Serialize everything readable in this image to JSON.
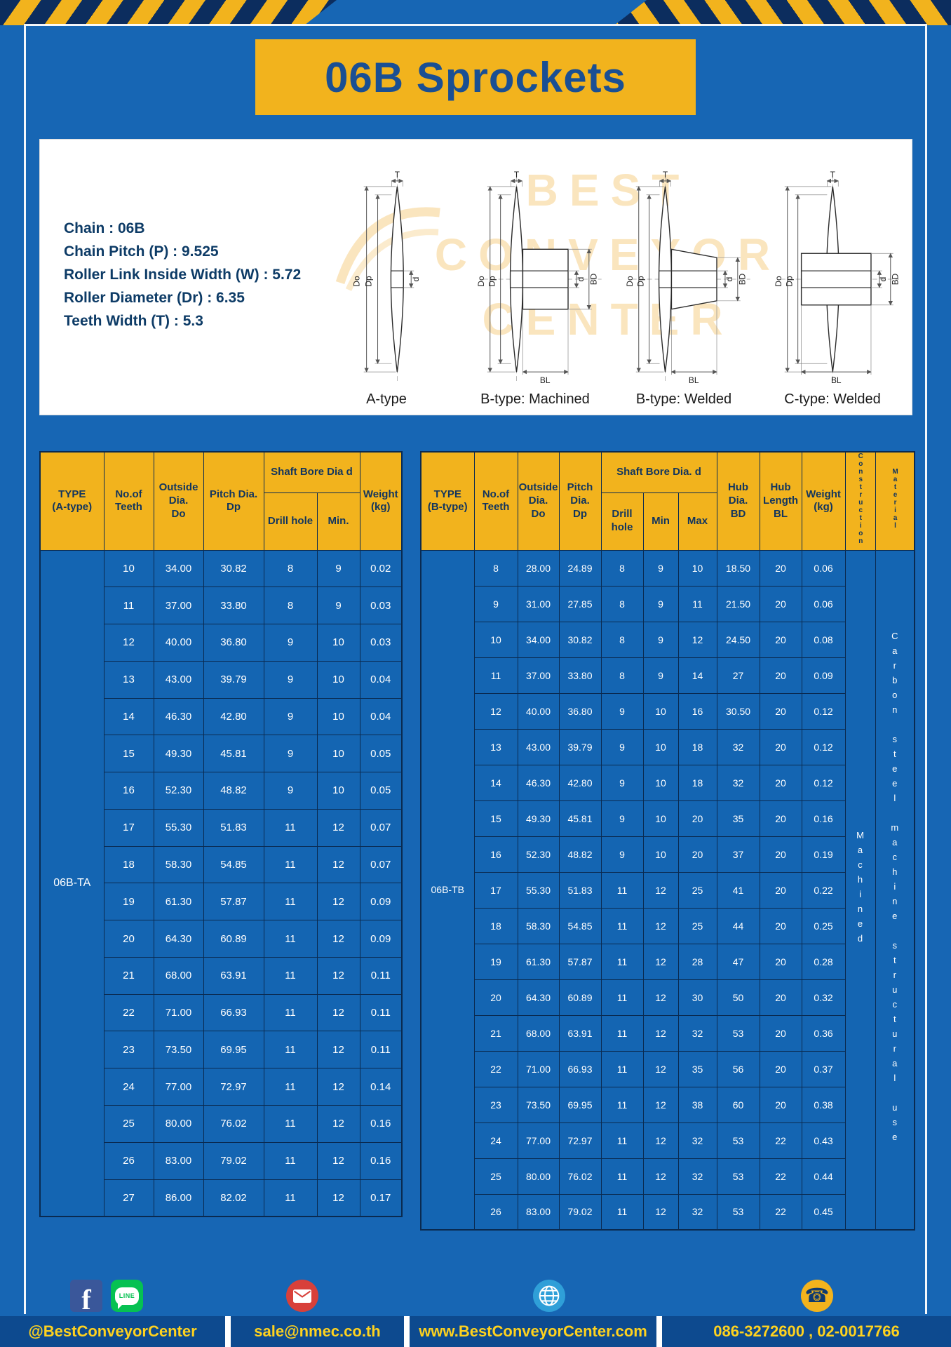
{
  "title": "06B Sprockets",
  "specs": [
    "Chain  :  06B",
    "Chain Pitch (P)  :  9.525",
    "Roller Link Inside Width (W)  :  5.72",
    "Roller Diameter (Dr)  :  6.35",
    "Teeth Width (T)  :  5.3"
  ],
  "watermark": [
    "BEST",
    "CONVEYOR",
    "CENTER"
  ],
  "diagrams": {
    "captions": [
      "A-type",
      "B-type: Machined",
      "B-type: Welded",
      "C-type: Welded"
    ],
    "dims": {
      "t": "T",
      "dO": "Do",
      "dp": "Dp",
      "d": "d",
      "bd": "BD",
      "bl": "BL"
    }
  },
  "table_a": {
    "headers": {
      "type": "TYPE\n(A-type)",
      "teeth": "No.of\nTeeth",
      "outside": "Outside\nDia.\nDo",
      "pitch": "Pitch Dia.\nDp",
      "bore_group": "Shaft Bore Dia d",
      "drill": "Drill hole",
      "min": "Min.",
      "weight": "Weight\n(kg)"
    },
    "type_label": "06B-TA",
    "rows": [
      [
        "10",
        "34.00",
        "30.82",
        "8",
        "9",
        "0.02"
      ],
      [
        "11",
        "37.00",
        "33.80",
        "8",
        "9",
        "0.03"
      ],
      [
        "12",
        "40.00",
        "36.80",
        "9",
        "10",
        "0.03"
      ],
      [
        "13",
        "43.00",
        "39.79",
        "9",
        "10",
        "0.04"
      ],
      [
        "14",
        "46.30",
        "42.80",
        "9",
        "10",
        "0.04"
      ],
      [
        "15",
        "49.30",
        "45.81",
        "9",
        "10",
        "0.05"
      ],
      [
        "16",
        "52.30",
        "48.82",
        "9",
        "10",
        "0.05"
      ],
      [
        "17",
        "55.30",
        "51.83",
        "11",
        "12",
        "0.07"
      ],
      [
        "18",
        "58.30",
        "54.85",
        "11",
        "12",
        "0.07"
      ],
      [
        "19",
        "61.30",
        "57.87",
        "11",
        "12",
        "0.09"
      ],
      [
        "20",
        "64.30",
        "60.89",
        "11",
        "12",
        "0.09"
      ],
      [
        "21",
        "68.00",
        "63.91",
        "11",
        "12",
        "0.11"
      ],
      [
        "22",
        "71.00",
        "66.93",
        "11",
        "12",
        "0.11"
      ],
      [
        "23",
        "73.50",
        "69.95",
        "11",
        "12",
        "0.11"
      ],
      [
        "24",
        "77.00",
        "72.97",
        "11",
        "12",
        "0.14"
      ],
      [
        "25",
        "80.00",
        "76.02",
        "11",
        "12",
        "0.16"
      ],
      [
        "26",
        "83.00",
        "79.02",
        "11",
        "12",
        "0.16"
      ],
      [
        "27",
        "86.00",
        "82.02",
        "11",
        "12",
        "0.17"
      ]
    ]
  },
  "table_b": {
    "headers": {
      "type": "TYPE\n(B-type)",
      "teeth": "No.of\nTeeth",
      "outside": "Outside\nDia.\nDo",
      "pitch": "Pitch\nDia.\nDp",
      "bore_group": "Shaft Bore Dia.  d",
      "drill": "Drill hole",
      "min": "Min",
      "max": "Max",
      "hub_dia": "Hub\nDia.\nBD",
      "hub_len": "Hub\nLength\nBL",
      "weight": "Weight\n(kg)",
      "construction": "Construction",
      "material": "Material"
    },
    "type_label": "06B-TB",
    "construction": "Machined",
    "material": "Carbon steel machine structural use",
    "rows": [
      [
        "8",
        "28.00",
        "24.89",
        "8",
        "9",
        "10",
        "18.50",
        "20",
        "0.06"
      ],
      [
        "9",
        "31.00",
        "27.85",
        "8",
        "9",
        "11",
        "21.50",
        "20",
        "0.06"
      ],
      [
        "10",
        "34.00",
        "30.82",
        "8",
        "9",
        "12",
        "24.50",
        "20",
        "0.08"
      ],
      [
        "11",
        "37.00",
        "33.80",
        "8",
        "9",
        "14",
        "27",
        "20",
        "0.09"
      ],
      [
        "12",
        "40.00",
        "36.80",
        "9",
        "10",
        "16",
        "30.50",
        "20",
        "0.12"
      ],
      [
        "13",
        "43.00",
        "39.79",
        "9",
        "10",
        "18",
        "32",
        "20",
        "0.12"
      ],
      [
        "14",
        "46.30",
        "42.80",
        "9",
        "10",
        "18",
        "32",
        "20",
        "0.12"
      ],
      [
        "15",
        "49.30",
        "45.81",
        "9",
        "10",
        "20",
        "35",
        "20",
        "0.16"
      ],
      [
        "16",
        "52.30",
        "48.82",
        "9",
        "10",
        "20",
        "37",
        "20",
        "0.19"
      ],
      [
        "17",
        "55.30",
        "51.83",
        "11",
        "12",
        "25",
        "41",
        "20",
        "0.22"
      ],
      [
        "18",
        "58.30",
        "54.85",
        "11",
        "12",
        "25",
        "44",
        "20",
        "0.25"
      ],
      [
        "19",
        "61.30",
        "57.87",
        "11",
        "12",
        "28",
        "47",
        "20",
        "0.28"
      ],
      [
        "20",
        "64.30",
        "60.89",
        "11",
        "12",
        "30",
        "50",
        "20",
        "0.32"
      ],
      [
        "21",
        "68.00",
        "63.91",
        "11",
        "12",
        "32",
        "53",
        "20",
        "0.36"
      ],
      [
        "22",
        "71.00",
        "66.93",
        "11",
        "12",
        "35",
        "56",
        "20",
        "0.37"
      ],
      [
        "23",
        "73.50",
        "69.95",
        "11",
        "12",
        "38",
        "60",
        "20",
        "0.38"
      ],
      [
        "24",
        "77.00",
        "72.97",
        "11",
        "12",
        "32",
        "53",
        "22",
        "0.43"
      ],
      [
        "25",
        "80.00",
        "76.02",
        "11",
        "12",
        "32",
        "53",
        "22",
        "0.44"
      ],
      [
        "26",
        "83.00",
        "79.02",
        "11",
        "12",
        "32",
        "53",
        "22",
        "0.45"
      ]
    ]
  },
  "footer": {
    "social_handle": "@BestConveyorCenter",
    "email": "sale@nmec.co.th",
    "website": "www.BestConveyorCenter.com",
    "phones": "086-3272600 , 02-0017766",
    "facebook_glyph": "f",
    "line_text": "LINE",
    "phone_glyph": "☎"
  }
}
